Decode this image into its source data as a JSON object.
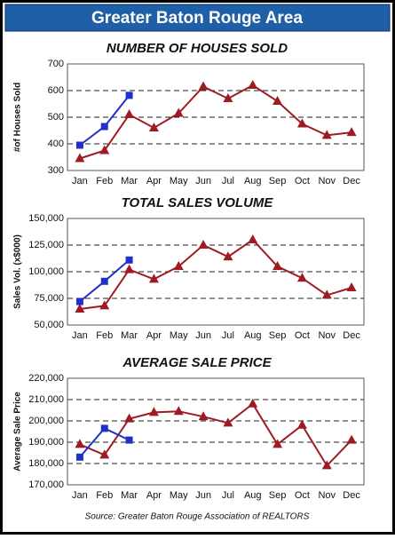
{
  "title": "Greater Baton Rouge Area",
  "source": "Source: Greater Baton Rouge Association of REALTORS",
  "chart_data": [
    {
      "type": "line",
      "title": "NUMBER OF HOUSES SOLD",
      "ylabel": "#of Houses Sold",
      "categories": [
        "Jan",
        "Feb",
        "Mar",
        "Apr",
        "May",
        "Jun",
        "Jul",
        "Aug",
        "Sep",
        "Oct",
        "Nov",
        "Dec"
      ],
      "ylim": [
        300,
        700
      ],
      "yticks": [
        300,
        400,
        500,
        600,
        700
      ],
      "grid": true,
      "series": [
        {
          "color": "#9e1b24",
          "marker": "triangle",
          "values": [
            345,
            375,
            510,
            460,
            515,
            615,
            570,
            620,
            560,
            475,
            432,
            443
          ]
        },
        {
          "color": "#2030c8",
          "marker": "square",
          "values": [
            395,
            465,
            582,
            null,
            null,
            null,
            null,
            null,
            null,
            null,
            null,
            null
          ]
        }
      ]
    },
    {
      "type": "line",
      "title": "TOTAL SALES VOLUME",
      "ylabel": "Sales Vol. (x$000)",
      "categories": [
        "Jan",
        "Feb",
        "Mar",
        "Apr",
        "May",
        "Jun",
        "Jul",
        "Aug",
        "Sep",
        "Oct",
        "Nov",
        "Dec"
      ],
      "ylim": [
        50000,
        150000
      ],
      "yticks": [
        {
          "value": 50000,
          "label": "50,000"
        },
        {
          "value": 75000,
          "label": "75,000"
        },
        {
          "value": 100000,
          "label": "100,000"
        },
        {
          "value": 125000,
          "label": "125,000"
        },
        {
          "value": 150000,
          "label": "150,000"
        }
      ],
      "grid": true,
      "series": [
        {
          "color": "#9e1b24",
          "marker": "triangle",
          "values": [
            65000,
            68000,
            102000,
            93000,
            105000,
            125000,
            114000,
            130000,
            105000,
            94000,
            78000,
            85000
          ]
        },
        {
          "color": "#2030c8",
          "marker": "square",
          "values": [
            72000,
            91000,
            111000,
            null,
            null,
            null,
            null,
            null,
            null,
            null,
            null,
            null
          ]
        }
      ]
    },
    {
      "type": "line",
      "title": "AVERAGE SALE PRICE",
      "ylabel": "Average Sale Price",
      "categories": [
        "Jan",
        "Feb",
        "Mar",
        "Apr",
        "May",
        "Jun",
        "Jul",
        "Aug",
        "Sep",
        "Oct",
        "Nov",
        "Dec"
      ],
      "ylim": [
        170000,
        220000
      ],
      "yticks": [
        {
          "value": 170000,
          "label": "170,000"
        },
        {
          "value": 180000,
          "label": "180,000"
        },
        {
          "value": 190000,
          "label": "190,000"
        },
        {
          "value": 200000,
          "label": "200,000"
        },
        {
          "value": 210000,
          "label": "210,000"
        },
        {
          "value": 220000,
          "label": "220,000"
        }
      ],
      "grid": true,
      "series": [
        {
          "color": "#9e1b24",
          "marker": "triangle",
          "values": [
            189000,
            184000,
            201000,
            204000,
            204500,
            202000,
            199000,
            208000,
            189000,
            198000,
            179000,
            191000
          ]
        },
        {
          "color": "#2030c8",
          "marker": "square",
          "values": [
            183000,
            196500,
            191000,
            null,
            null,
            null,
            null,
            null,
            null,
            null,
            null,
            null
          ]
        }
      ]
    }
  ]
}
